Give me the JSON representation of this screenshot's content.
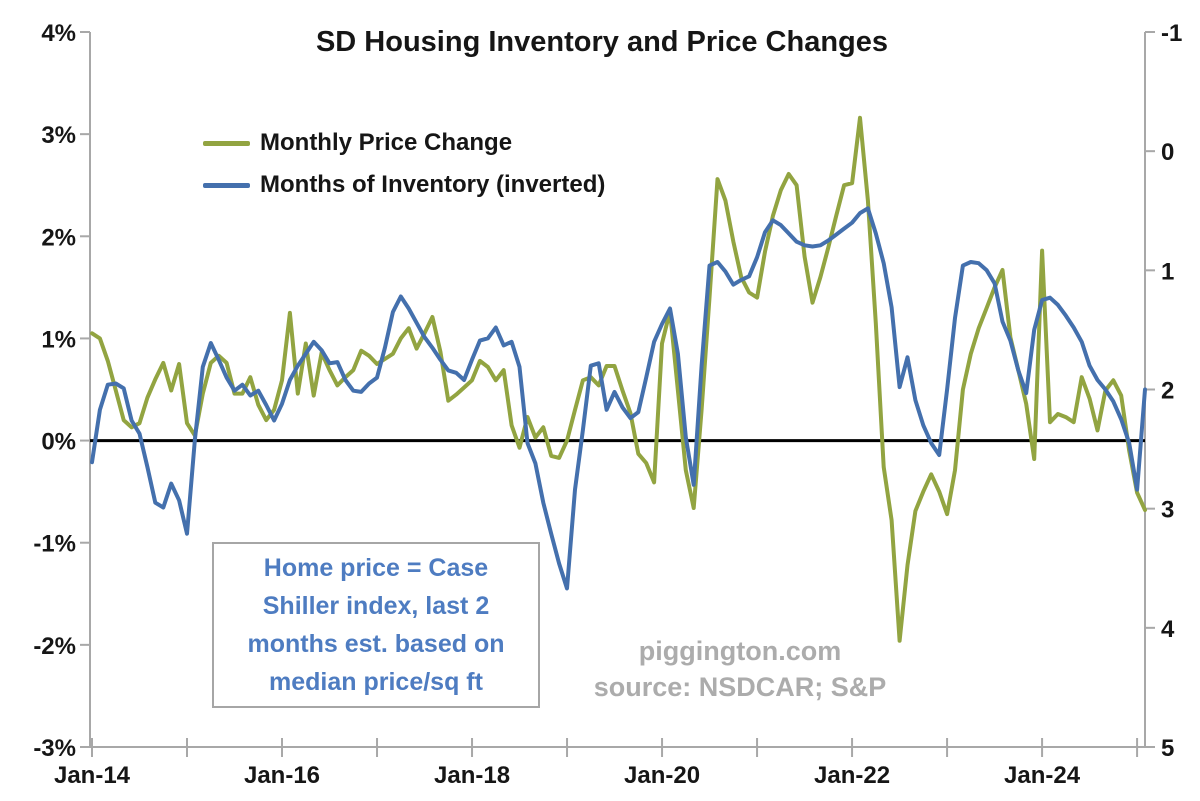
{
  "title": "SD Housing Inventory and Price Changes",
  "legend": [
    {
      "label": "Monthly Price Change",
      "color": "#92a441",
      "icon": "line-swatch"
    },
    {
      "label": "Months of Inventory (inverted)",
      "color": "#4470ad",
      "icon": "line-swatch"
    }
  ],
  "annotation_box": {
    "text": "Home price = Case Shiller index, last 2 months est. based on median price/sq ft",
    "text_color": "#4e7cc1",
    "border_color": "#a6a6a6"
  },
  "watermark": {
    "line1": "piggington.com",
    "line2": "source: NSDCAR; S&P",
    "color": "#acacac"
  },
  "chart_data": {
    "type": "line",
    "title": "SD Housing Inventory and Price Changes",
    "x_frequency": "monthly",
    "x_start_month": "2014-01",
    "x_end_month": "2025-02",
    "x_points": 134,
    "axis_color": "#a8a8a8",
    "zero_line": {
      "show": true,
      "color": "#000000",
      "at_left_value": 0
    },
    "grid": "off",
    "legend_position": "top-left-inside",
    "x_axis": {
      "tick_labels": [
        "Jan-14",
        "Jan-16",
        "Jan-18",
        "Jan-20",
        "Jan-22",
        "Jan-24"
      ],
      "label_every_years": 2,
      "minor_tick_every_years": 1,
      "years_ticked": 12
    },
    "left_axis": {
      "series": "Monthly Price Change",
      "unit": "%",
      "tick_values": [
        4,
        3,
        2,
        1,
        0,
        -1,
        -2,
        -3
      ],
      "tick_labels": [
        "4%",
        "3%",
        "2%",
        "1%",
        "0%",
        "-1%",
        "-2%",
        "-3%"
      ],
      "range": [
        4,
        -3
      ]
    },
    "right_axis": {
      "series": "Months of Inventory (inverted)",
      "unit": "months",
      "inverted": true,
      "tick_values": [
        -1,
        0,
        1,
        2,
        3,
        4,
        5
      ],
      "tick_labels": [
        "-1",
        "0",
        "1",
        "2",
        "3",
        "4",
        "5"
      ],
      "range_top_to_bottom": [
        -1,
        5
      ]
    },
    "series": [
      {
        "name": "Monthly Price Change",
        "axis": "left",
        "unit": "%",
        "color": "#92a441",
        "stroke_width": 4,
        "values": [
          1.05,
          1.0,
          0.78,
          0.49,
          0.2,
          0.13,
          0.17,
          0.42,
          0.6,
          0.76,
          0.49,
          0.75,
          0.17,
          0.05,
          0.46,
          0.76,
          0.83,
          0.76,
          0.46,
          0.46,
          0.62,
          0.35,
          0.2,
          0.3,
          0.59,
          1.25,
          0.46,
          0.95,
          0.44,
          0.86,
          0.69,
          0.54,
          0.62,
          0.69,
          0.88,
          0.83,
          0.75,
          0.8,
          0.85,
          1.0,
          1.1,
          0.9,
          1.05,
          1.21,
          0.87,
          0.39,
          0.45,
          0.52,
          0.59,
          0.78,
          0.72,
          0.59,
          0.69,
          0.15,
          -0.07,
          0.23,
          0.03,
          0.13,
          -0.15,
          -0.17,
          0.0,
          0.3,
          0.59,
          0.62,
          0.54,
          0.73,
          0.73,
          0.49,
          0.27,
          -0.13,
          -0.22,
          -0.41,
          0.95,
          1.27,
          0.49,
          -0.29,
          -0.66,
          0.3,
          1.4,
          2.56,
          2.35,
          1.95,
          1.6,
          1.45,
          1.4,
          1.85,
          2.2,
          2.45,
          2.61,
          2.5,
          1.8,
          1.35,
          1.6,
          1.89,
          2.2,
          2.5,
          2.52,
          3.16,
          2.35,
          1.15,
          -0.26,
          -0.78,
          -1.96,
          -1.22,
          -0.69,
          -0.5,
          -0.33,
          -0.5,
          -0.72,
          -0.29,
          0.5,
          0.85,
          1.1,
          1.3,
          1.5,
          1.67,
          1.01,
          0.69,
          0.36,
          -0.18,
          1.86,
          0.18,
          0.26,
          0.23,
          0.18,
          0.62,
          0.41,
          0.1,
          0.49,
          0.59,
          0.44,
          -0.1,
          -0.51,
          -0.68
        ]
      },
      {
        "name": "Months of Inventory (inverted)",
        "axis": "right",
        "unit": "months",
        "color": "#4470ad",
        "stroke_width": 4,
        "values": [
          2.61,
          2.17,
          1.96,
          1.95,
          1.99,
          2.26,
          2.37,
          2.65,
          2.95,
          2.99,
          2.79,
          2.93,
          3.21,
          2.42,
          1.81,
          1.61,
          1.75,
          1.9,
          2.01,
          1.96,
          2.05,
          2.01,
          2.13,
          2.26,
          2.12,
          1.92,
          1.8,
          1.7,
          1.6,
          1.67,
          1.78,
          1.77,
          1.92,
          2.01,
          2.02,
          1.95,
          1.9,
          1.65,
          1.35,
          1.22,
          1.32,
          1.44,
          1.56,
          1.65,
          1.75,
          1.84,
          1.86,
          1.92,
          1.75,
          1.59,
          1.57,
          1.48,
          1.63,
          1.6,
          1.81,
          2.45,
          2.62,
          2.95,
          3.21,
          3.46,
          3.67,
          2.84,
          2.34,
          1.8,
          1.78,
          2.17,
          2.02,
          2.15,
          2.24,
          2.19,
          1.9,
          1.6,
          1.45,
          1.32,
          1.7,
          2.4,
          2.8,
          1.8,
          0.96,
          0.93,
          1.01,
          1.12,
          1.08,
          1.05,
          0.89,
          0.68,
          0.58,
          0.62,
          0.69,
          0.76,
          0.79,
          0.8,
          0.79,
          0.75,
          0.7,
          0.65,
          0.6,
          0.52,
          0.48,
          0.69,
          0.94,
          1.31,
          1.98,
          1.73,
          2.09,
          2.3,
          2.45,
          2.55,
          2.0,
          1.4,
          0.96,
          0.93,
          0.94,
          1.0,
          1.11,
          1.43,
          1.59,
          1.84,
          2.03,
          1.5,
          1.25,
          1.23,
          1.29,
          1.38,
          1.48,
          1.6,
          1.8,
          1.92,
          2.0,
          2.1,
          2.25,
          2.45,
          2.84,
          2.0
        ]
      }
    ]
  }
}
